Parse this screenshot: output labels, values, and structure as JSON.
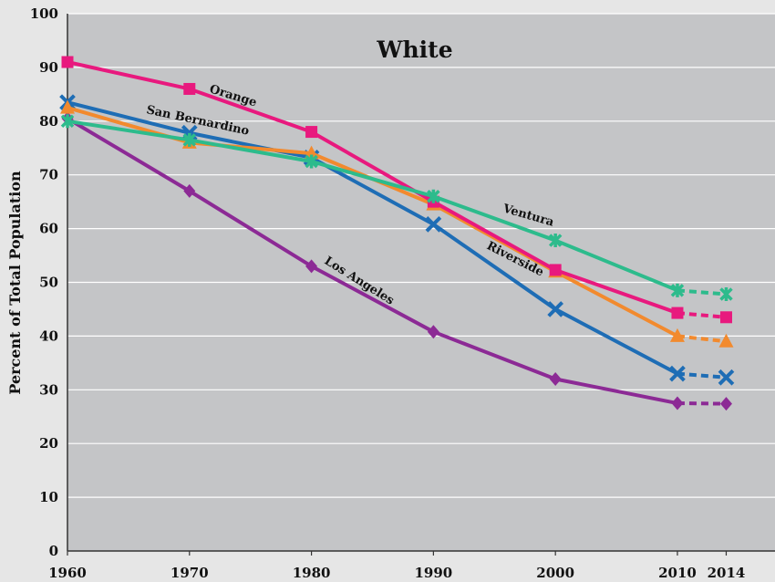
{
  "chart_data": {
    "type": "line",
    "title": "White",
    "ylabel": "Percent of Total Population",
    "xlabel": "",
    "x": [
      1960,
      1970,
      1980,
      1990,
      2000,
      2010,
      2014
    ],
    "x_tick_labels": [
      "1960",
      "1970",
      "1980",
      "1990",
      "2000",
      "2010",
      "2014"
    ],
    "y_tick_labels": [
      "0",
      "10",
      "20",
      "30",
      "40",
      "50",
      "60",
      "70",
      "80",
      "90",
      "100"
    ],
    "ylim": [
      0,
      100
    ],
    "xlim": [
      1960,
      2018
    ],
    "grid": "horizontal",
    "dashed_segment": "2010-2014",
    "series": [
      {
        "name": "Ventura",
        "color": "#2dbb8c",
        "marker": "star",
        "values": [
          80,
          76.5,
          72.5,
          66,
          57.8,
          48.5,
          47.8
        ]
      },
      {
        "name": "Orange",
        "color": "#e8197e",
        "marker": "square",
        "values": [
          91,
          86,
          78,
          65,
          52.3,
          44.3,
          43.5
        ]
      },
      {
        "name": "Riverside",
        "color": "#f28a2e",
        "marker": "triangle",
        "values": [
          82.5,
          76,
          74,
          64.5,
          52,
          40,
          39
        ]
      },
      {
        "name": "San Bernardino",
        "color": "#1e6db5",
        "marker": "x",
        "values": [
          83.5,
          77.8,
          73.2,
          60.8,
          45,
          33,
          32.3
        ]
      },
      {
        "name": "Los Angeles",
        "color": "#8c2a95",
        "marker": "diamond",
        "values": [
          80.5,
          67,
          53,
          40.8,
          32,
          27.5,
          27.4
        ]
      }
    ]
  }
}
